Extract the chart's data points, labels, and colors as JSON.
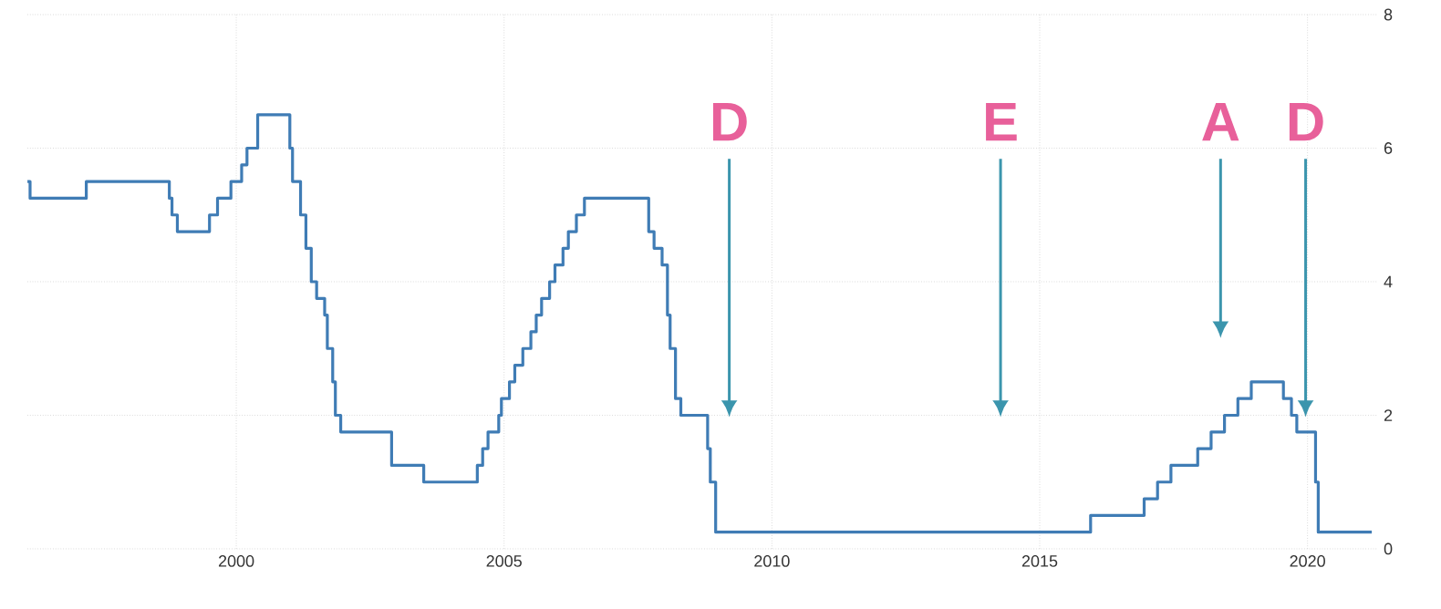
{
  "chart_data": {
    "type": "step",
    "x": [
      1996.1,
      1996.15,
      1997.2,
      1998.75,
      1998.8,
      1998.9,
      1999.5,
      1999.65,
      1999.9,
      2000.1,
      2000.2,
      2000.4,
      2001.0,
      2001.05,
      2001.2,
      2001.3,
      2001.4,
      2001.5,
      2001.65,
      2001.7,
      2001.8,
      2001.85,
      2001.95,
      2002.9,
      2003.5,
      2004.5,
      2004.6,
      2004.7,
      2004.9,
      2004.95,
      2005.1,
      2005.2,
      2005.35,
      2005.5,
      2005.6,
      2005.7,
      2005.85,
      2005.95,
      2006.1,
      2006.2,
      2006.35,
      2006.5,
      2007.7,
      2007.8,
      2007.95,
      2008.05,
      2008.1,
      2008.2,
      2008.3,
      2008.8,
      2008.85,
      2008.95,
      2015.95,
      2016.95,
      2017.2,
      2017.45,
      2017.95,
      2018.2,
      2018.45,
      2018.7,
      2018.95,
      2019.55,
      2019.7,
      2019.8,
      2020.15,
      2020.2,
      2021.2
    ],
    "series": [
      {
        "color": "#3f7cb5",
        "values": [
          5.5,
          5.25,
          5.5,
          5.25,
          5.0,
          4.75,
          5.0,
          5.25,
          5.5,
          5.75,
          6.0,
          6.5,
          6.0,
          5.5,
          5.0,
          4.5,
          4.0,
          3.75,
          3.5,
          3.0,
          2.5,
          2.0,
          1.75,
          1.25,
          1.0,
          1.25,
          1.5,
          1.75,
          2.0,
          2.25,
          2.5,
          2.75,
          3.0,
          3.25,
          3.5,
          3.75,
          4.0,
          4.25,
          4.5,
          4.75,
          5.0,
          5.25,
          4.75,
          4.5,
          4.25,
          3.5,
          3.0,
          2.25,
          2.0,
          1.5,
          1.0,
          0.25,
          0.5,
          0.75,
          1.0,
          1.25,
          1.5,
          1.75,
          2.0,
          2.25,
          2.5,
          2.25,
          2.0,
          1.75,
          1.0,
          0.25,
          0.25
        ]
      }
    ],
    "xlim": [
      1996.1,
      2021.3
    ],
    "ylim": [
      0,
      8
    ],
    "xticks": [
      2000,
      2005,
      2010,
      2015,
      2020
    ],
    "yticks": [
      0,
      2,
      4,
      6,
      8
    ],
    "grid": true,
    "marker": "none",
    "line_style": "solid",
    "annotations": [
      "D",
      "E",
      "A",
      "D"
    ]
  }
}
